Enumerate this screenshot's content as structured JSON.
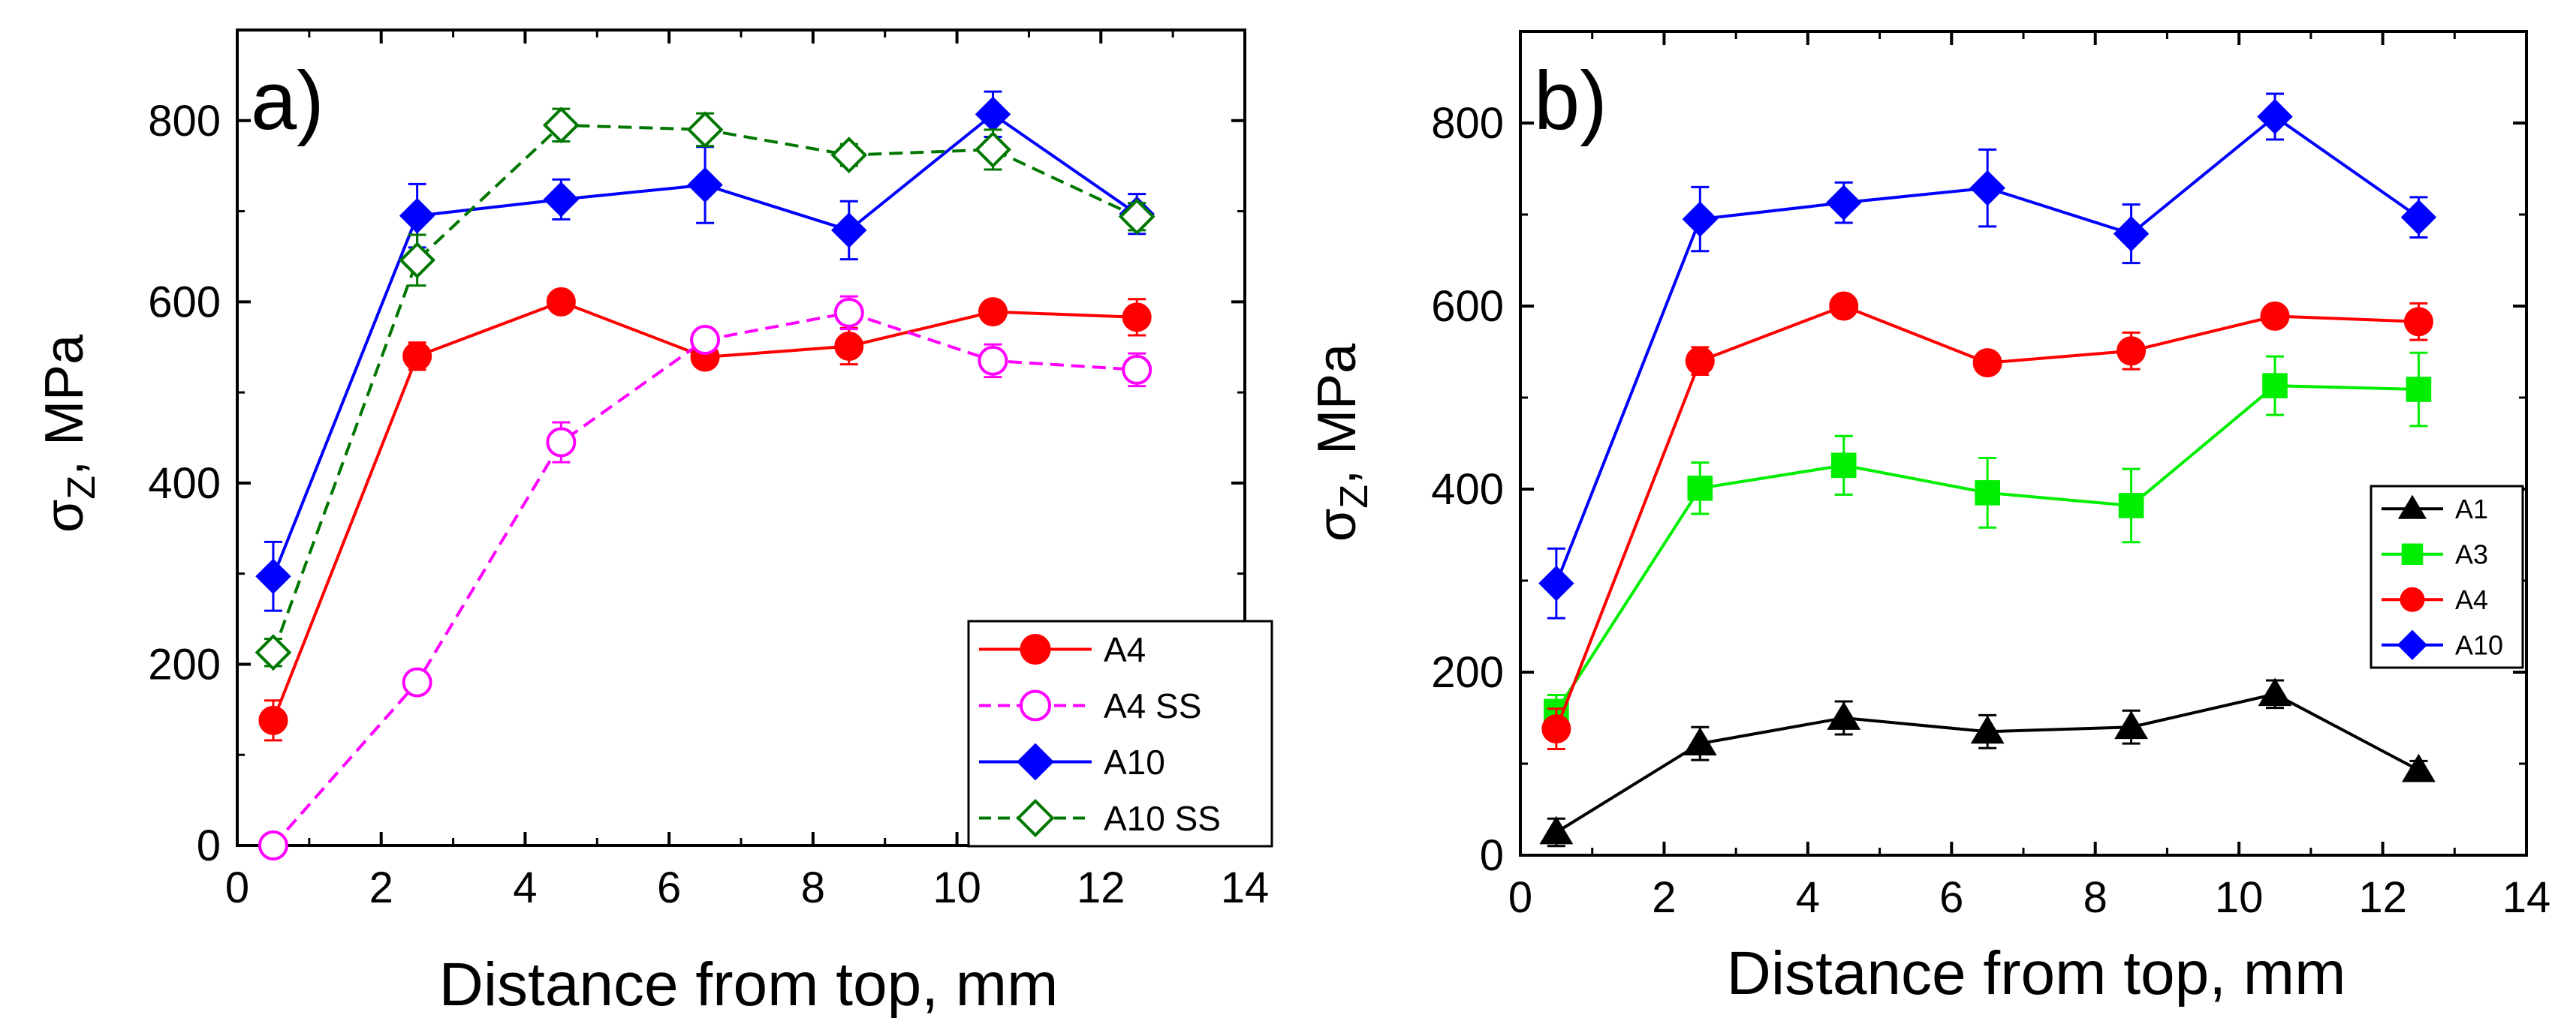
{
  "chart_data": [
    {
      "type": "line",
      "panel_label": "a)",
      "xlabel": "Distance from top, mm",
      "ylabel_main": "σ",
      "ylabel_sub": "Z",
      "ylabel_rest": ", MPa",
      "xlim": [
        0,
        14
      ],
      "ylim": [
        0,
        900
      ],
      "xticks": [
        0,
        2,
        4,
        6,
        8,
        10,
        12,
        14
      ],
      "yticks": [
        0,
        200,
        400,
        600,
        800
      ],
      "grid": false,
      "legend_position": "bottom-right",
      "x": [
        0.5,
        2.5,
        4.5,
        6.5,
        8.5,
        10.5,
        12.5
      ],
      "series": [
        {
          "name": "A4",
          "color": "#ff0000",
          "marker": "circle",
          "filled": true,
          "dashed": false,
          "values": [
            138,
            540,
            600,
            539,
            551,
            589,
            583
          ],
          "errors": [
            22,
            15,
            10,
            10,
            20,
            10,
            20
          ]
        },
        {
          "name": "A4 SS",
          "color": "#ff00ff",
          "marker": "circle",
          "filled": false,
          "dashed": true,
          "values": [
            0,
            180,
            445,
            558,
            588,
            535,
            525
          ],
          "errors": [
            0,
            12,
            22,
            12,
            18,
            18,
            18
          ]
        },
        {
          "name": "A10",
          "color": "#0000ff",
          "marker": "diamond",
          "filled": true,
          "dashed": false,
          "values": [
            297,
            695,
            713,
            729,
            679,
            807,
            697
          ],
          "errors": [
            38,
            35,
            22,
            42,
            32,
            25,
            22
          ]
        },
        {
          "name": "A10 SS",
          "color": "#007700",
          "marker": "diamond",
          "filled": false,
          "dashed": true,
          "values": [
            213,
            646,
            795,
            790,
            762,
            768,
            694
          ],
          "errors": [
            15,
            28,
            18,
            18,
            12,
            22,
            15
          ]
        }
      ]
    },
    {
      "type": "line",
      "panel_label": "b)",
      "xlabel": "Distance from top, mm",
      "ylabel_main": "σ",
      "ylabel_sub": "Z",
      "ylabel_rest": ", MPa",
      "xlim": [
        0,
        14
      ],
      "ylim": [
        0,
        900
      ],
      "xticks": [
        0,
        2,
        4,
        6,
        8,
        10,
        12,
        14
      ],
      "yticks": [
        0,
        200,
        400,
        600,
        800
      ],
      "grid": false,
      "legend_position": "right",
      "x": [
        0.5,
        2.5,
        4.5,
        6.5,
        8.5,
        10.5,
        12.5
      ],
      "series": [
        {
          "name": "A1",
          "color": "#000000",
          "marker": "triangle",
          "filled": true,
          "dashed": false,
          "values": [
            25,
            122,
            150,
            135,
            140,
            176,
            93
          ],
          "errors": [
            15,
            18,
            18,
            18,
            18,
            15,
            10
          ]
        },
        {
          "name": "A3",
          "color": "#00ee00",
          "marker": "square",
          "filled": true,
          "dashed": false,
          "values": [
            157,
            401,
            426,
            396,
            382,
            513,
            509
          ],
          "errors": [
            18,
            28,
            32,
            38,
            40,
            32,
            40
          ]
        },
        {
          "name": "A4",
          "color": "#ff0000",
          "marker": "circle",
          "filled": true,
          "dashed": false,
          "values": [
            138,
            540,
            600,
            538,
            551,
            589,
            583
          ],
          "errors": [
            22,
            15,
            10,
            10,
            20,
            10,
            20
          ]
        },
        {
          "name": "A10",
          "color": "#0000ff",
          "marker": "diamond",
          "filled": true,
          "dashed": false,
          "values": [
            297,
            695,
            713,
            729,
            679,
            807,
            697
          ],
          "errors": [
            38,
            35,
            22,
            42,
            32,
            25,
            22
          ]
        }
      ]
    }
  ]
}
